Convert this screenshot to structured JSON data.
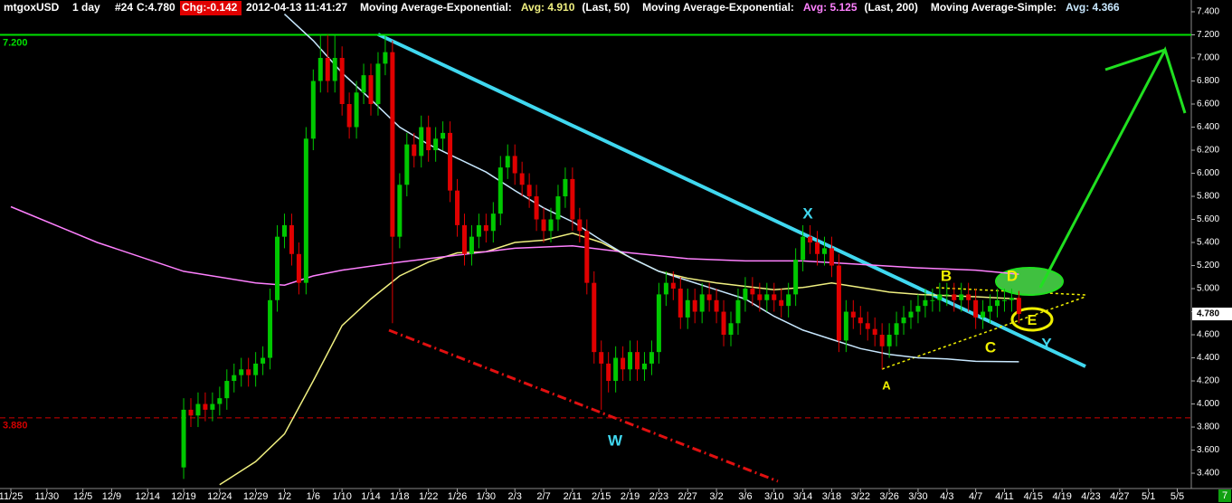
{
  "chart_data": {
    "type": "candlestick",
    "symbol": "mtgoxUSD",
    "interval": "1 day",
    "bar_number": "#24",
    "close_label": "C:4.780",
    "change_label": "Chg:-0.142",
    "timestamp": "2012-04-13 11:41:27",
    "ylim": [
      3.267,
      7.502
    ],
    "yticks": [
      {
        "value": 7.4,
        "label": "7.400"
      },
      {
        "value": 7.2,
        "label": "7.200"
      },
      {
        "value": 7.0,
        "label": "7.000"
      },
      {
        "value": 6.8,
        "label": "6.800"
      },
      {
        "value": 6.6,
        "label": "6.600"
      },
      {
        "value": 6.4,
        "label": "6.400"
      },
      {
        "value": 6.2,
        "label": "6.200"
      },
      {
        "value": 6.0,
        "label": "6.000"
      },
      {
        "value": 5.8,
        "label": "5.800"
      },
      {
        "value": 5.6,
        "label": "5.600"
      },
      {
        "value": 5.4,
        "label": "5.400"
      },
      {
        "value": 5.2,
        "label": "5.200"
      },
      {
        "value": 5.0,
        "label": "5.000"
      },
      {
        "value": 4.8,
        "label": "4.800"
      },
      {
        "value": 4.6,
        "label": "4.600"
      },
      {
        "value": 4.4,
        "label": "4.400"
      },
      {
        "value": 4.2,
        "label": "4.200"
      },
      {
        "value": 4.0,
        "label": "4.000"
      },
      {
        "value": 3.8,
        "label": "3.800"
      },
      {
        "value": 3.6,
        "label": "3.600"
      },
      {
        "value": 3.4,
        "label": "3.400"
      }
    ],
    "xticks": [
      "11/25",
      "11/30",
      "12/5",
      "12/9",
      "12/14",
      "12/19",
      "12/24",
      "12/29",
      "1/2",
      "1/6",
      "1/10",
      "1/14",
      "1/18",
      "1/22",
      "1/26",
      "1/30",
      "2/3",
      "2/7",
      "2/11",
      "2/15",
      "2/19",
      "2/23",
      "2/27",
      "3/2",
      "3/6",
      "3/10",
      "3/14",
      "3/18",
      "3/22",
      "3/26",
      "3/30",
      "4/3",
      "4/7",
      "4/11",
      "4/15",
      "4/19",
      "4/23",
      "4/27",
      "5/1",
      "5/5"
    ],
    "up_color": "#00c800",
    "down_color": "#e00000",
    "x": [
      "12/19",
      "12/20",
      "12/21",
      "12/22",
      "12/23",
      "12/24",
      "12/25",
      "12/26",
      "12/27",
      "12/28",
      "12/29",
      "12/30",
      "12/31",
      "1/1",
      "1/2",
      "1/3",
      "1/4",
      "1/5",
      "1/6",
      "1/7",
      "1/8",
      "1/9",
      "1/10",
      "1/11",
      "1/12",
      "1/13",
      "1/14",
      "1/15",
      "1/16",
      "1/17",
      "1/18",
      "1/19",
      "1/20",
      "1/21",
      "1/22",
      "1/23",
      "1/24",
      "1/25",
      "1/26",
      "1/27",
      "1/28",
      "1/29",
      "1/30",
      "1/31",
      "2/1",
      "2/2",
      "2/3",
      "2/4",
      "2/5",
      "2/6",
      "2/7",
      "2/8",
      "2/9",
      "2/10",
      "2/11",
      "2/12",
      "2/13",
      "2/14",
      "2/15",
      "2/16",
      "2/17",
      "2/18",
      "2/19",
      "2/20",
      "2/21",
      "2/22",
      "2/23",
      "2/24",
      "2/25",
      "2/26",
      "2/27",
      "2/28",
      "2/29",
      "3/1",
      "3/2",
      "3/3",
      "3/4",
      "3/5",
      "3/6",
      "3/7",
      "3/8",
      "3/9",
      "3/10",
      "3/11",
      "3/12",
      "3/13",
      "3/14",
      "3/15",
      "3/16",
      "3/17",
      "3/18",
      "3/19",
      "3/20",
      "3/21",
      "3/22",
      "3/23",
      "3/24",
      "3/25",
      "3/26",
      "3/27",
      "3/28",
      "3/29",
      "3/30",
      "3/31",
      "4/1",
      "4/2",
      "4/3",
      "4/4",
      "4/5",
      "4/6",
      "4/7",
      "4/8",
      "4/9",
      "4/10",
      "4/11",
      "4/12",
      "4/13"
    ],
    "open": [
      3.45,
      3.95,
      3.9,
      4.0,
      3.95,
      4.0,
      4.05,
      4.2,
      4.25,
      4.3,
      4.25,
      4.35,
      4.4,
      4.9,
      5.45,
      5.55,
      5.3,
      5.05,
      6.3,
      6.8,
      7.0,
      6.8,
      7.0,
      6.6,
      6.4,
      6.7,
      6.85,
      6.6,
      6.95,
      7.05,
      5.45,
      5.9,
      6.25,
      6.15,
      6.4,
      6.2,
      6.3,
      6.35,
      5.85,
      5.55,
      5.3,
      5.45,
      5.55,
      5.5,
      5.65,
      6.05,
      6.15,
      6.0,
      5.9,
      5.8,
      5.6,
      5.5,
      5.6,
      5.8,
      5.95,
      5.6,
      5.5,
      5.05,
      4.45,
      4.35,
      4.2,
      4.4,
      4.3,
      4.45,
      4.3,
      4.35,
      4.45,
      4.95,
      5.05,
      5.0,
      4.75,
      4.9,
      4.8,
      4.95,
      4.9,
      4.8,
      4.6,
      4.7,
      4.9,
      5.0,
      4.95,
      4.9,
      4.95,
      4.9,
      4.85,
      4.95,
      5.25,
      5.45,
      5.4,
      5.3,
      5.35,
      5.2,
      4.55,
      4.8,
      4.75,
      4.7,
      4.65,
      4.6,
      4.5,
      4.6,
      4.7,
      4.75,
      4.8,
      4.85,
      4.9,
      4.9,
      4.95,
      4.95,
      4.9,
      4.95,
      4.9,
      4.75,
      4.8,
      4.85,
      4.9,
      4.9,
      4.92
    ],
    "high": [
      4.05,
      4.05,
      4.1,
      4.1,
      4.1,
      4.15,
      4.3,
      4.35,
      4.4,
      4.4,
      4.45,
      4.5,
      5.0,
      5.55,
      5.65,
      5.65,
      5.4,
      6.4,
      6.9,
      7.2,
      7.2,
      7.2,
      7.1,
      6.7,
      6.8,
      6.95,
      6.95,
      7.05,
      7.2,
      7.15,
      6.0,
      6.35,
      6.35,
      6.5,
      6.5,
      6.4,
      6.45,
      6.45,
      5.95,
      5.65,
      5.55,
      5.65,
      5.65,
      5.75,
      6.15,
      6.25,
      6.25,
      6.1,
      6.0,
      5.9,
      5.7,
      5.7,
      5.9,
      6.05,
      6.05,
      5.7,
      5.6,
      5.15,
      4.55,
      4.45,
      4.5,
      4.5,
      4.55,
      4.55,
      4.45,
      4.55,
      5.05,
      5.15,
      5.15,
      5.1,
      5.0,
      5.0,
      5.05,
      5.05,
      5.0,
      4.9,
      4.8,
      5.0,
      5.1,
      5.1,
      5.05,
      5.05,
      5.05,
      5.0,
      5.05,
      5.35,
      5.55,
      5.55,
      5.5,
      5.45,
      5.45,
      5.3,
      4.9,
      4.9,
      4.85,
      4.8,
      4.75,
      4.7,
      4.7,
      4.8,
      4.85,
      4.9,
      4.95,
      5.0,
      5.0,
      5.05,
      5.05,
      5.05,
      5.05,
      5.05,
      5.0,
      4.9,
      4.95,
      5.0,
      5.0,
      5.0,
      4.98
    ],
    "low": [
      3.35,
      3.8,
      3.8,
      3.85,
      3.85,
      3.9,
      3.95,
      4.1,
      4.15,
      4.15,
      4.15,
      4.25,
      4.3,
      4.8,
      5.35,
      5.2,
      4.95,
      4.95,
      6.2,
      6.7,
      6.7,
      6.7,
      6.5,
      6.3,
      6.3,
      6.6,
      6.5,
      6.5,
      6.85,
      4.7,
      5.35,
      5.8,
      6.05,
      6.05,
      6.1,
      6.1,
      6.2,
      5.75,
      5.45,
      5.2,
      5.2,
      5.35,
      5.4,
      5.4,
      5.55,
      5.95,
      5.9,
      5.8,
      5.7,
      5.5,
      5.4,
      5.4,
      5.5,
      5.7,
      5.5,
      5.4,
      4.95,
      4.35,
      3.95,
      4.1,
      4.1,
      4.2,
      4.2,
      4.2,
      4.2,
      4.25,
      4.35,
      4.85,
      4.9,
      4.65,
      4.65,
      4.7,
      4.7,
      4.8,
      4.7,
      4.5,
      4.5,
      4.6,
      4.8,
      4.85,
      4.8,
      4.8,
      4.8,
      4.75,
      4.75,
      4.85,
      5.15,
      5.3,
      5.2,
      5.2,
      5.1,
      4.45,
      4.45,
      4.65,
      4.6,
      4.55,
      4.5,
      4.3,
      4.4,
      4.5,
      4.6,
      4.65,
      4.7,
      4.75,
      4.8,
      4.8,
      4.85,
      4.8,
      4.8,
      4.8,
      4.65,
      4.65,
      4.7,
      4.75,
      4.8,
      4.8,
      4.7
    ],
    "close": [
      3.95,
      3.9,
      4.0,
      3.95,
      4.0,
      4.05,
      4.2,
      4.25,
      4.3,
      4.25,
      4.35,
      4.4,
      4.9,
      5.45,
      5.55,
      5.3,
      5.05,
      6.3,
      6.8,
      7.0,
      6.8,
      7.0,
      6.6,
      6.4,
      6.7,
      6.85,
      6.6,
      6.95,
      7.05,
      5.45,
      5.9,
      6.25,
      6.15,
      6.4,
      6.2,
      6.3,
      6.35,
      5.85,
      5.55,
      5.3,
      5.45,
      5.55,
      5.5,
      5.65,
      6.05,
      6.15,
      6.0,
      5.9,
      5.8,
      5.6,
      5.5,
      5.6,
      5.8,
      5.95,
      5.6,
      5.5,
      5.05,
      4.45,
      4.35,
      4.2,
      4.4,
      4.3,
      4.45,
      4.3,
      4.35,
      4.45,
      4.95,
      5.05,
      5.0,
      4.75,
      4.9,
      4.8,
      4.95,
      4.9,
      4.8,
      4.6,
      4.7,
      4.9,
      5.0,
      4.95,
      4.9,
      4.95,
      4.9,
      4.85,
      4.95,
      5.25,
      5.45,
      5.4,
      5.3,
      5.35,
      5.2,
      4.55,
      4.8,
      4.75,
      4.7,
      4.65,
      4.6,
      4.5,
      4.6,
      4.7,
      4.75,
      4.8,
      4.85,
      4.9,
      4.9,
      4.95,
      4.95,
      4.9,
      4.95,
      4.9,
      4.75,
      4.8,
      4.85,
      4.9,
      4.9,
      4.92,
      4.78
    ],
    "series": [
      {
        "name": "Moving Average-Exponential:",
        "avg_label": "Avg: 4.910",
        "params": "(Last, 50)",
        "color": "#f0f080",
        "x": [
          "12/24",
          "12/29",
          "1/2",
          "1/6",
          "1/10",
          "1/14",
          "1/18",
          "1/22",
          "1/26",
          "1/30",
          "2/3",
          "2/7",
          "2/11",
          "2/15",
          "2/19",
          "2/23",
          "2/27",
          "3/2",
          "3/6",
          "3/10",
          "3/14",
          "3/18",
          "3/22",
          "3/26",
          "3/30",
          "4/3",
          "4/7",
          "4/13"
        ],
        "values": [
          3.3,
          3.5,
          3.74,
          4.2,
          4.68,
          4.91,
          5.11,
          5.23,
          5.31,
          5.32,
          5.4,
          5.42,
          5.48,
          5.4,
          5.27,
          5.15,
          5.09,
          5.05,
          5.02,
          4.99,
          5.01,
          5.05,
          5.01,
          4.97,
          4.95,
          4.94,
          4.93,
          4.91
        ]
      },
      {
        "name": "Moving Average-Exponential:",
        "avg_label": "Avg: 5.125",
        "params": "(Last, 200)",
        "color": "#ff80ff",
        "x": [
          "11/25",
          "12/7",
          "12/19",
          "12/29",
          "1/2",
          "1/6",
          "1/10",
          "1/18",
          "1/26",
          "2/3",
          "2/11",
          "2/19",
          "2/27",
          "3/6",
          "3/14",
          "3/22",
          "3/30",
          "4/7",
          "4/13"
        ],
        "values": [
          5.71,
          5.4,
          5.15,
          5.05,
          5.03,
          5.11,
          5.16,
          5.23,
          5.29,
          5.35,
          5.37,
          5.31,
          5.26,
          5.24,
          5.24,
          5.21,
          5.18,
          5.16,
          5.125
        ]
      },
      {
        "name": "Moving Average-Simple:",
        "avg_label": "Avg: 4.366",
        "color": "#c8e8ff",
        "x": [
          "1/2",
          "1/6",
          "1/10",
          "1/14",
          "1/18",
          "1/22",
          "1/26",
          "1/30",
          "2/3",
          "2/7",
          "2/11",
          "2/15",
          "2/19",
          "2/23",
          "2/27",
          "3/2",
          "3/6",
          "3/10",
          "3/14",
          "3/18",
          "3/22",
          "3/26",
          "3/30",
          "4/3",
          "4/7",
          "4/13"
        ],
        "values": [
          7.38,
          7.15,
          6.87,
          6.64,
          6.4,
          6.25,
          6.13,
          6.01,
          5.85,
          5.7,
          5.58,
          5.42,
          5.27,
          5.15,
          5.07,
          4.99,
          4.91,
          4.76,
          4.64,
          4.56,
          4.48,
          4.43,
          4.4,
          4.39,
          4.37,
          4.366
        ]
      }
    ],
    "hlines": [
      {
        "value": 7.2,
        "label": "7.200",
        "color": "#00e000"
      },
      {
        "value": 3.88,
        "label": "3.880",
        "color": "#d00000"
      }
    ],
    "last_price": {
      "value": 4.78,
      "label": "4.780"
    },
    "page_number": "7",
    "annotations": [
      "X",
      "W",
      "B",
      "D",
      "E",
      "C",
      "Y",
      "A"
    ]
  }
}
